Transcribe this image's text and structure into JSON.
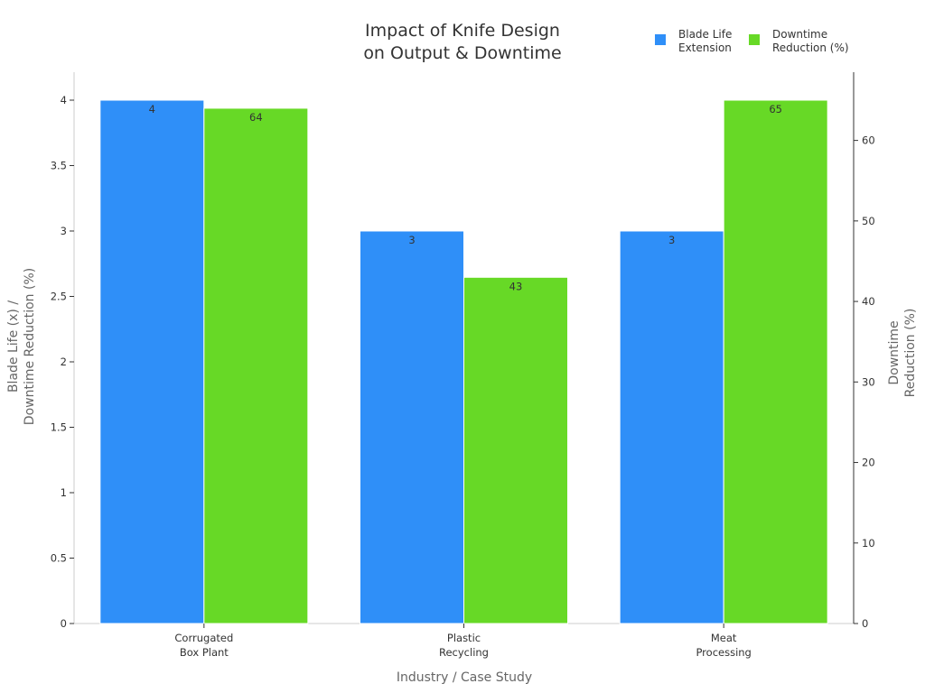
{
  "chart_data": {
    "type": "bar",
    "title": [
      "Impact of Knife Design",
      "on Output & Downtime"
    ],
    "categories": [
      [
        "Corrugated",
        "Box Plant"
      ],
      [
        "Plastic",
        "Recycling"
      ],
      [
        "Meat",
        "Processing"
      ]
    ],
    "series": [
      {
        "name": [
          "Blade Life",
          "Extension"
        ],
        "values": [
          4,
          3,
          3
        ],
        "axis": "left",
        "color": "#2f8ff8"
      },
      {
        "name": [
          "Downtime",
          "Reduction (%)"
        ],
        "values": [
          64,
          43,
          65
        ],
        "axis": "right",
        "color": "#67d926"
      }
    ],
    "xlabel": "Industry / Case Study",
    "ylabel_left": [
      "Blade Life (x) /",
      "Downtime Reduction (%)"
    ],
    "ylabel_right": [
      "Downtime",
      "Reduction (%)"
    ],
    "ylim_left": [
      0,
      4
    ],
    "ylim_right": [
      0,
      65
    ],
    "yticks_left": [
      0,
      0.5,
      1,
      1.5,
      2,
      2.5,
      3,
      3.5,
      4
    ],
    "yticks_right": [
      0,
      10,
      20,
      30,
      40,
      50,
      60
    ],
    "grid": false,
    "legend_position": "top-right",
    "data_labels": true
  }
}
